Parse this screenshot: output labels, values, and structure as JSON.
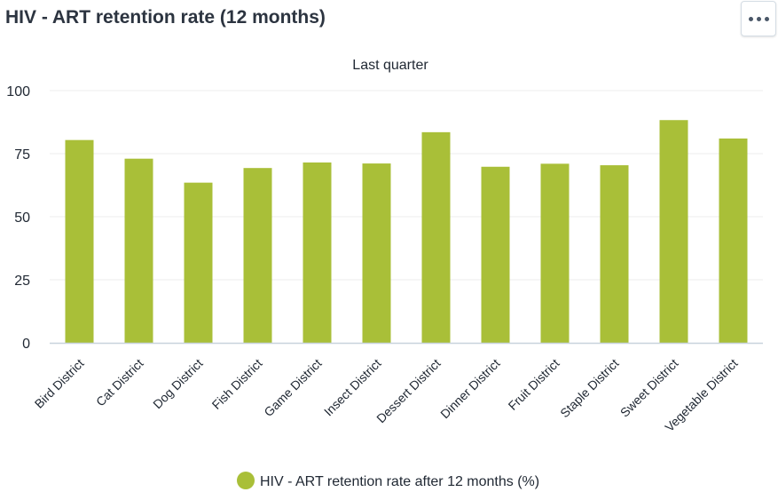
{
  "header": {
    "title": "HIV - ART retention rate (12 months)",
    "menu_icon": "more-dots-icon"
  },
  "chart_data": {
    "type": "bar",
    "title": "HIV - ART retention rate (12 months)",
    "subtitle": "Last quarter",
    "xlabel": "",
    "ylabel": "",
    "ylim": [
      0,
      100
    ],
    "yticks": [
      0,
      25,
      50,
      75,
      100
    ],
    "grid": true,
    "legend_position": "bottom",
    "categories": [
      "Bird District",
      "Cat District",
      "Dog District",
      "Fish District",
      "Game District",
      "Insect District",
      "Dessert District",
      "Dinner District",
      "Fruit District",
      "Staple District",
      "Sweet District",
      "Vegetable District"
    ],
    "series": [
      {
        "name": "HIV - ART retention rate after 12 months (%)",
        "color": "#a9bf38",
        "values": [
          80.4,
          73.0,
          63.5,
          69.3,
          71.5,
          71.1,
          83.5,
          69.8,
          71.0,
          70.4,
          88.3,
          81.0
        ]
      }
    ]
  }
}
